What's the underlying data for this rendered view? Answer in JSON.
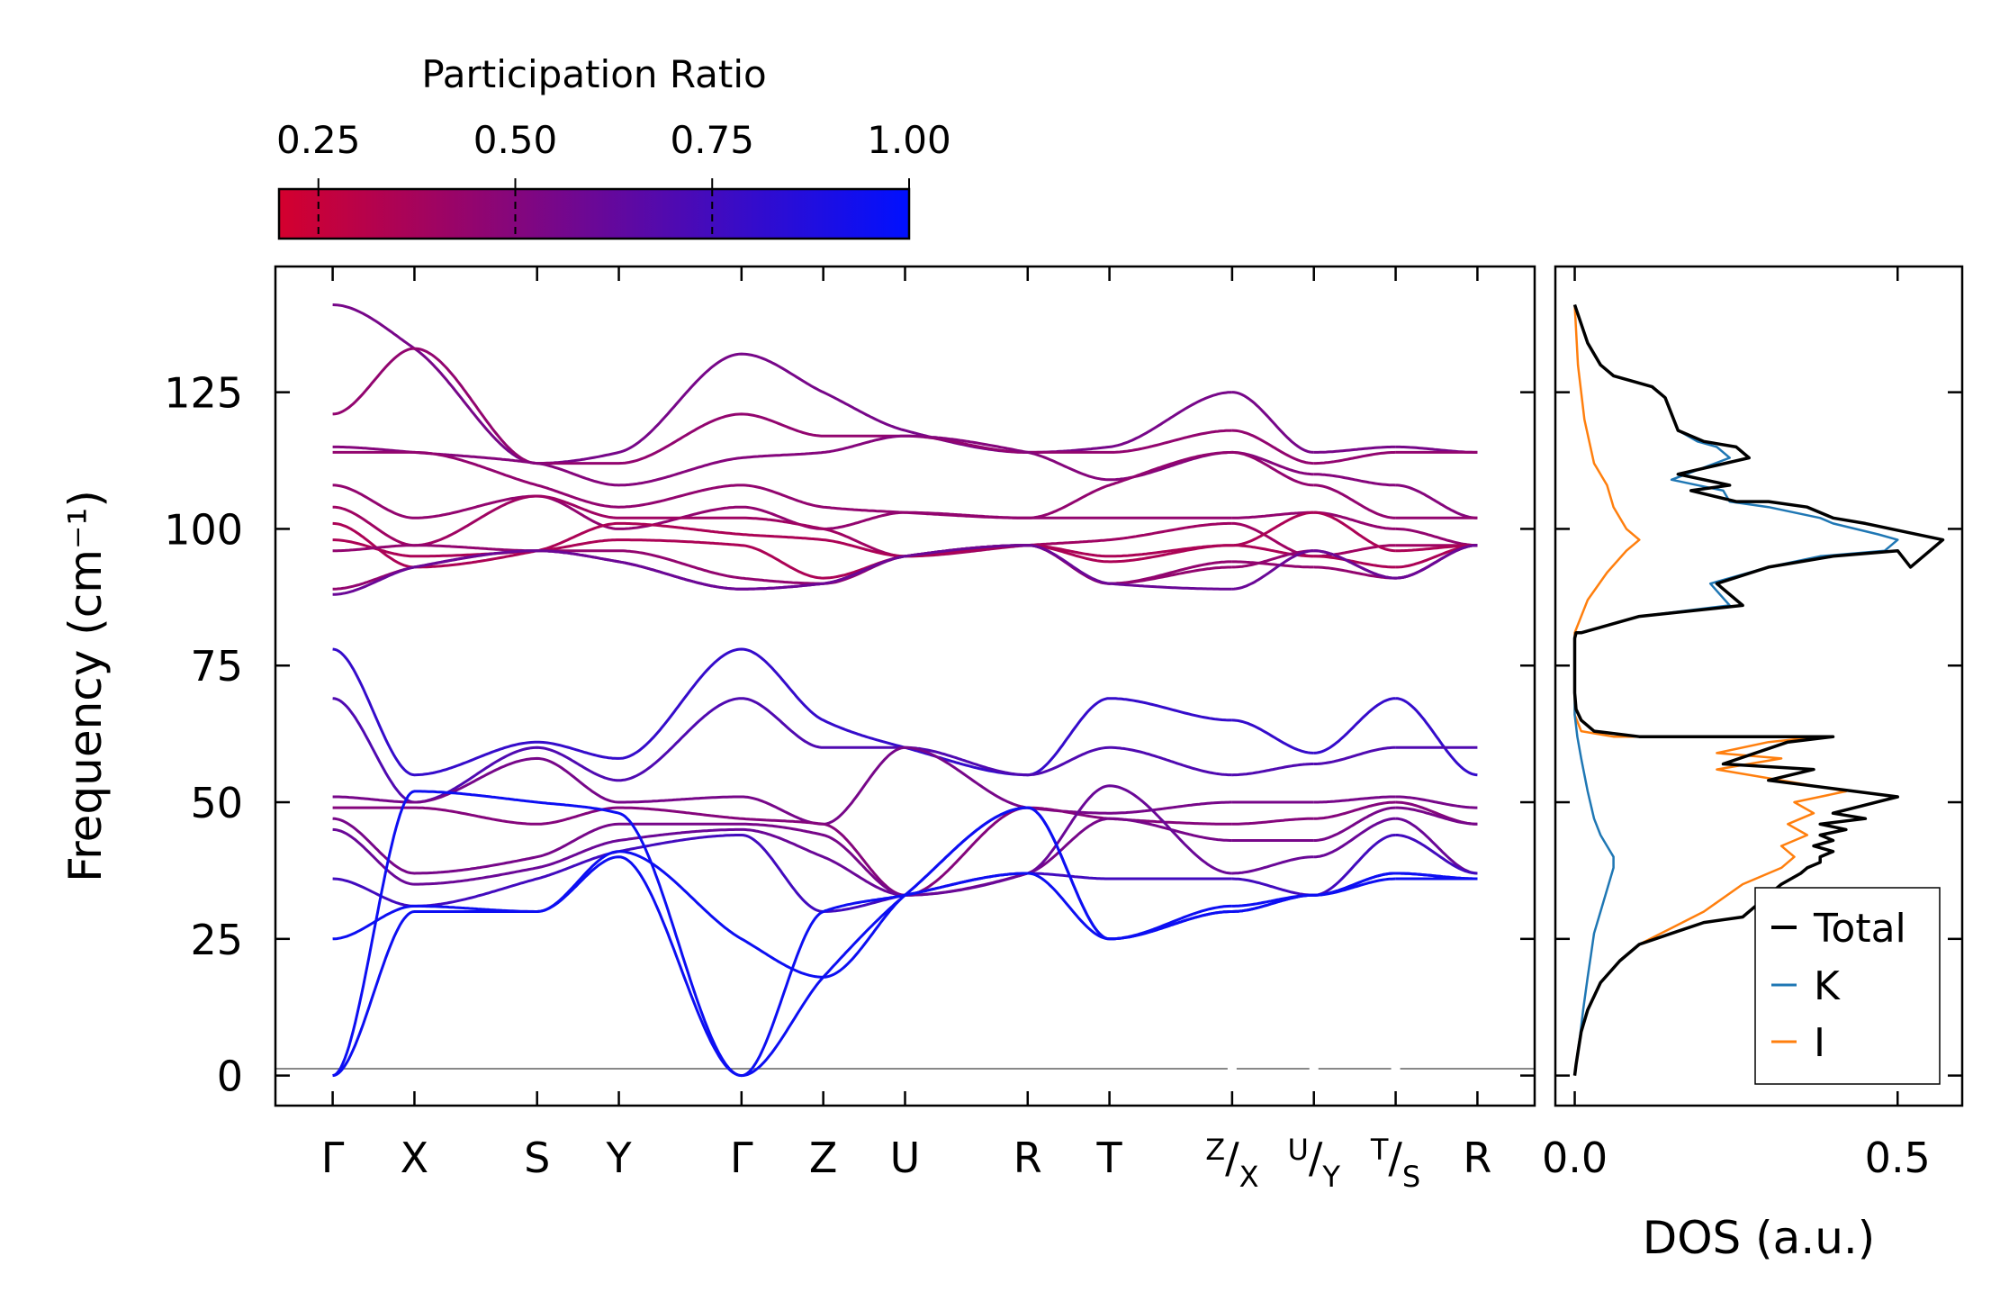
{
  "colors": {
    "low": "#d4002e",
    "high": "#0010ff",
    "total": "#000000",
    "K": "#1f77b4",
    "I": "#ff7f0e",
    "zero_line": "#888888"
  },
  "colorbar": {
    "title": "Participation Ratio",
    "range": [
      0.2,
      1.0
    ],
    "ticks": [
      0.25,
      0.5,
      0.75,
      1.0
    ],
    "tick_labels": [
      "0.25",
      "0.50",
      "0.75",
      "1.00"
    ]
  },
  "chart_data": [
    {
      "type": "line",
      "name": "phonon band structure",
      "ylabel": "Frequency (cm⁻¹)",
      "ylim": [
        -5.5,
        148
      ],
      "yticks": [
        0,
        25,
        50,
        75,
        100,
        125
      ],
      "ytick_labels": [
        "0",
        "25",
        "50",
        "75",
        "100",
        "125"
      ],
      "kpoints": [
        {
          "label": "Γ",
          "sub": "",
          "x": 0.0
        },
        {
          "label": "X",
          "sub": "",
          "x": 1.0
        },
        {
          "label": "S",
          "sub": "",
          "x": 2.5
        },
        {
          "label": "Y",
          "sub": "",
          "x": 3.5
        },
        {
          "label": "Γ",
          "sub": "",
          "x": 5.0
        },
        {
          "label": "Z",
          "sub": "",
          "x": 6.0
        },
        {
          "label": "U",
          "sub": "",
          "x": 7.0
        },
        {
          "label": "R",
          "sub": "",
          "x": 8.5
        },
        {
          "label": "T",
          "sub": "",
          "x": 9.5
        },
        {
          "label": "Z",
          "sub": "X",
          "x": 11.0
        },
        {
          "label": "U",
          "sub": "Y",
          "x": 12.0
        },
        {
          "label": "T",
          "sub": "S",
          "x": 13.0
        },
        {
          "label": "R",
          "sub": "",
          "x": 14.0
        }
      ],
      "xlim": [
        -0.7,
        14.7
      ],
      "segments": [
        [
          0.0,
          11.0
        ],
        [
          11.0,
          12.0
        ],
        [
          12.0,
          13.0
        ],
        [
          13.0,
          14.0
        ]
      ],
      "bands": [
        {
          "name": "optic-1",
          "pr": 0.55,
          "x": [
            0,
            1,
            2.5,
            3.5,
            5,
            6,
            7,
            8.5,
            9.5,
            11,
            12,
            13,
            14
          ],
          "y": [
            141,
            133,
            112,
            114,
            132,
            125,
            118,
            114,
            115,
            125,
            114,
            115,
            114
          ]
        },
        {
          "name": "optic-2",
          "pr": 0.45,
          "x": [
            0,
            1,
            2.5,
            3.5,
            5,
            6,
            7,
            8.5,
            9.5,
            11,
            12,
            13,
            14
          ],
          "y": [
            121,
            133,
            112,
            112,
            121,
            117,
            117,
            114,
            114,
            118,
            112,
            114,
            114
          ]
        },
        {
          "name": "optic-3",
          "pr": 0.5,
          "x": [
            0,
            1,
            2.5,
            3.5,
            5,
            6,
            7,
            8.5,
            9.5,
            11,
            12,
            13,
            14
          ],
          "y": [
            115,
            114,
            112,
            108,
            113,
            114,
            117,
            114,
            109,
            114,
            110,
            108,
            102
          ]
        },
        {
          "name": "optic-4",
          "pr": 0.45,
          "x": [
            0,
            1,
            2.5,
            3.5,
            5,
            6,
            7,
            8.5,
            9.5,
            11,
            12,
            13,
            14
          ],
          "y": [
            114,
            114,
            108,
            104,
            108,
            104,
            103,
            102,
            108,
            114,
            108,
            102,
            102
          ]
        },
        {
          "name": "optic-5",
          "pr": 0.45,
          "x": [
            0,
            1,
            2.5,
            3.5,
            5,
            6,
            7,
            8.5,
            9.5,
            11,
            12,
            13,
            14
          ],
          "y": [
            108,
            102,
            106,
            100,
            104,
            100,
            103,
            102,
            102,
            102,
            103,
            100,
            97
          ]
        },
        {
          "name": "optic-6",
          "pr": 0.4,
          "x": [
            0,
            1,
            2.5,
            3.5,
            5,
            6,
            7,
            8.5,
            9.5,
            11,
            12,
            13,
            14
          ],
          "y": [
            104,
            97,
            106,
            102,
            102,
            100,
            95,
            97,
            98,
            101,
            95,
            97,
            97
          ]
        },
        {
          "name": "optic-7",
          "pr": 0.35,
          "x": [
            0,
            1,
            2.5,
            3.5,
            5,
            6,
            7,
            8.5,
            9.5,
            11,
            12,
            13,
            14
          ],
          "y": [
            101,
            93,
            96,
            101,
            99,
            98,
            95,
            97,
            95,
            97,
            103,
            96,
            97
          ]
        },
        {
          "name": "optic-8",
          "pr": 0.35,
          "x": [
            0,
            1,
            2.5,
            3.5,
            5,
            6,
            7,
            8.5,
            9.5,
            11,
            12,
            13,
            14
          ],
          "y": [
            98,
            95,
            96,
            98,
            97,
            91,
            95,
            97,
            94,
            97,
            95,
            93,
            97
          ]
        },
        {
          "name": "optic-9",
          "pr": 0.45,
          "x": [
            0,
            1,
            2.5,
            3.5,
            5,
            6,
            7,
            8.5,
            9.5,
            11,
            12,
            13,
            14
          ],
          "y": [
            96,
            97,
            96,
            96,
            91,
            90,
            95,
            97,
            90,
            94,
            93,
            91,
            97
          ]
        },
        {
          "name": "optic-10",
          "pr": 0.45,
          "x": [
            0,
            1,
            2.5,
            3.5,
            5,
            6,
            7,
            8.5,
            9.5,
            11,
            12,
            13,
            14
          ],
          "y": [
            89,
            93,
            96,
            94,
            89,
            90,
            95,
            97,
            90,
            93,
            96,
            91,
            97
          ]
        },
        {
          "name": "optic-11",
          "pr": 0.6,
          "x": [
            0,
            1,
            2.5,
            3.5,
            5,
            6,
            7,
            8.5,
            9.5,
            11,
            12,
            13,
            14
          ],
          "y": [
            88,
            93,
            96,
            94,
            89,
            90,
            95,
            97,
            90,
            89,
            96,
            91,
            97
          ]
        },
        {
          "name": "acoustic-opt-1",
          "pr": 0.8,
          "x": [
            0,
            1,
            2.5,
            3.5,
            5,
            6,
            7,
            8.5,
            9.5,
            11,
            12,
            13,
            14
          ],
          "y": [
            78,
            55,
            61,
            58,
            78,
            65,
            60,
            55,
            69,
            65,
            59,
            69,
            55
          ]
        },
        {
          "name": "acoustic-opt-2",
          "pr": 0.7,
          "x": [
            0,
            1,
            2.5,
            3.5,
            5,
            6,
            7,
            8.5,
            9.5,
            11,
            12,
            13,
            14
          ],
          "y": [
            69,
            50,
            60,
            54,
            69,
            60,
            60,
            55,
            60,
            55,
            57,
            60,
            60
          ]
        },
        {
          "name": "acoustic-opt-3",
          "pr": 0.55,
          "x": [
            0,
            1,
            2.5,
            3.5,
            5,
            6,
            7,
            8.5,
            9.5,
            11,
            12,
            13,
            14
          ],
          "y": [
            51,
            50,
            58,
            50,
            51,
            46,
            60,
            49,
            48,
            50,
            50,
            51,
            49
          ]
        },
        {
          "name": "acoustic-opt-4",
          "pr": 0.5,
          "x": [
            0,
            1,
            2.5,
            3.5,
            5,
            6,
            7,
            8.5,
            9.5,
            11,
            12,
            13,
            14
          ],
          "y": [
            49,
            49,
            46,
            49,
            47,
            46,
            33,
            49,
            47,
            46,
            47,
            50,
            46
          ]
        },
        {
          "name": "acoustic-opt-5",
          "pr": 0.55,
          "x": [
            0,
            1,
            2.5,
            3.5,
            5,
            6,
            7,
            8.5,
            9.5,
            11,
            12,
            13,
            14
          ],
          "y": [
            47,
            37,
            40,
            46,
            46,
            44,
            33,
            37,
            47,
            43,
            43,
            49,
            46
          ]
        },
        {
          "name": "acoustic-opt-6",
          "pr": 0.6,
          "x": [
            0,
            1,
            2.5,
            3.5,
            5,
            6,
            7,
            8.5,
            9.5,
            11,
            12,
            13,
            14
          ],
          "y": [
            45,
            35,
            38,
            43,
            45,
            40,
            33,
            37,
            53,
            37,
            40,
            47,
            37
          ]
        },
        {
          "name": "acoustic-opt-7",
          "pr": 0.75,
          "x": [
            0,
            1,
            2.5,
            3.5,
            5,
            6,
            7,
            8.5,
            9.5,
            11,
            12,
            13,
            14
          ],
          "y": [
            36,
            31,
            36,
            41,
            44,
            30,
            33,
            37,
            36,
            36,
            33,
            44,
            37
          ]
        },
        {
          "name": "acoustic-1",
          "pr": 0.95,
          "x": [
            0,
            1,
            2.5,
            3.5,
            5,
            6,
            7,
            8.5,
            9.5,
            11,
            12,
            13,
            14
          ],
          "y": [
            25,
            31,
            30,
            41,
            25,
            18,
            33,
            49,
            25,
            31,
            33,
            37,
            36
          ]
        },
        {
          "name": "acoustic-2",
          "pr": 0.95,
          "x": [
            0,
            1,
            2.5,
            3.5,
            5,
            6,
            7,
            8.5,
            9.5,
            11,
            12,
            13,
            14
          ],
          "y": [
            0,
            52,
            50,
            48,
            0,
            18,
            33,
            49,
            25,
            30,
            33,
            36,
            36
          ]
        },
        {
          "name": "acoustic-3",
          "pr": 0.95,
          "x": [
            0,
            1,
            2.5,
            3.5,
            5,
            6,
            7,
            8.5,
            9.5,
            11,
            12,
            13,
            14
          ],
          "y": [
            0,
            30,
            30,
            40,
            0,
            30,
            33,
            37,
            25,
            30,
            33,
            37,
            36
          ]
        }
      ]
    },
    {
      "type": "line",
      "name": "density of states",
      "xlabel": "DOS (a.u.)",
      "xlim": [
        -0.03,
        0.6
      ],
      "xticks": [
        0.0,
        0.5
      ],
      "xtick_labels": [
        "0.0",
        "0.5"
      ],
      "ylim": [
        -5.5,
        148
      ],
      "series": [
        {
          "name": "Total",
          "color": "#000000",
          "x": [
            0.0,
            0.002,
            0.006,
            0.01,
            0.02,
            0.04,
            0.07,
            0.1,
            0.15,
            0.2,
            0.26,
            0.3,
            0.32,
            0.35,
            0.36,
            0.38,
            0.38,
            0.4,
            0.37,
            0.4,
            0.38,
            0.42,
            0.38,
            0.45,
            0.4,
            0.5,
            0.3,
            0.37,
            0.23,
            0.33,
            0.4,
            0.1,
            0.03,
            0.01,
            0.002,
            0.0,
            0.0,
            0.0,
            0.002,
            0.01,
            0.1,
            0.26,
            0.22,
            0.3,
            0.4,
            0.5,
            0.52,
            0.57,
            0.45,
            0.4,
            0.36,
            0.3,
            0.25,
            0.18,
            0.24,
            0.16,
            0.27,
            0.25,
            0.2,
            0.16,
            0.14,
            0.12,
            0.06,
            0.04,
            0.02,
            0.0
          ],
          "y": [
            0,
            2,
            5,
            8,
            12,
            17,
            21,
            24,
            26,
            28,
            29,
            33,
            35,
            37,
            38,
            39,
            40,
            41,
            42,
            43,
            44,
            45,
            46,
            47,
            48,
            51,
            54,
            56,
            57,
            61,
            62,
            62,
            63,
            65,
            67,
            70,
            75,
            80,
            81,
            81,
            84,
            86,
            90,
            93,
            95,
            96,
            93,
            98,
            101,
            102,
            104,
            105,
            105,
            107,
            108,
            110,
            113,
            115,
            116,
            118,
            124,
            126,
            128,
            130,
            134,
            141
          ]
        },
        {
          "name": "K",
          "color": "#1f77b4",
          "x": [
            0.0,
            0.003,
            0.008,
            0.013,
            0.02,
            0.025,
            0.03,
            0.04,
            0.05,
            0.06,
            0.06,
            0.05,
            0.04,
            0.03,
            0.02,
            0.01,
            0.004,
            0.0,
            0.0,
            0.0,
            0.002,
            0.01,
            0.1,
            0.24,
            0.21,
            0.3,
            0.38,
            0.48,
            0.5,
            0.47,
            0.4,
            0.38,
            0.3,
            0.24,
            0.23,
            0.15,
            0.24,
            0.22,
            0.19,
            0.16,
            0.14,
            0.12,
            0.06,
            0.04,
            0.02,
            0.0
          ],
          "y": [
            0,
            3,
            7,
            12,
            18,
            22,
            26,
            30,
            34,
            38,
            40,
            42,
            44,
            47,
            52,
            58,
            62,
            66,
            75,
            80,
            81,
            81,
            84,
            86,
            90,
            93,
            95,
            96,
            98,
            99,
            101,
            102,
            104,
            105,
            107,
            109,
            113,
            115,
            116,
            118,
            124,
            126,
            128,
            130,
            134,
            141
          ]
        },
        {
          "name": "I",
          "color": "#ff7f0e",
          "x": [
            0.0,
            0.002,
            0.006,
            0.01,
            0.02,
            0.04,
            0.07,
            0.1,
            0.15,
            0.2,
            0.26,
            0.32,
            0.34,
            0.32,
            0.36,
            0.33,
            0.37,
            0.34,
            0.42,
            0.22,
            0.32,
            0.22,
            0.3,
            0.38,
            0.06,
            0.01,
            0.0,
            0.0,
            0.0,
            0.02,
            0.05,
            0.08,
            0.1,
            0.08,
            0.06,
            0.05,
            0.03,
            0.015,
            0.005,
            0.0
          ],
          "y": [
            0,
            2,
            5,
            8,
            12,
            17,
            21,
            24,
            27,
            30,
            35,
            38,
            40,
            42,
            44,
            46,
            48,
            50,
            52,
            56,
            58,
            59,
            61,
            62,
            62,
            63,
            66,
            75,
            81,
            87,
            92,
            96,
            98,
            100,
            104,
            108,
            112,
            120,
            130,
            141
          ]
        }
      ],
      "legend": {
        "location": "lower-right",
        "entries": [
          "Total",
          "K",
          "I"
        ]
      }
    }
  ]
}
